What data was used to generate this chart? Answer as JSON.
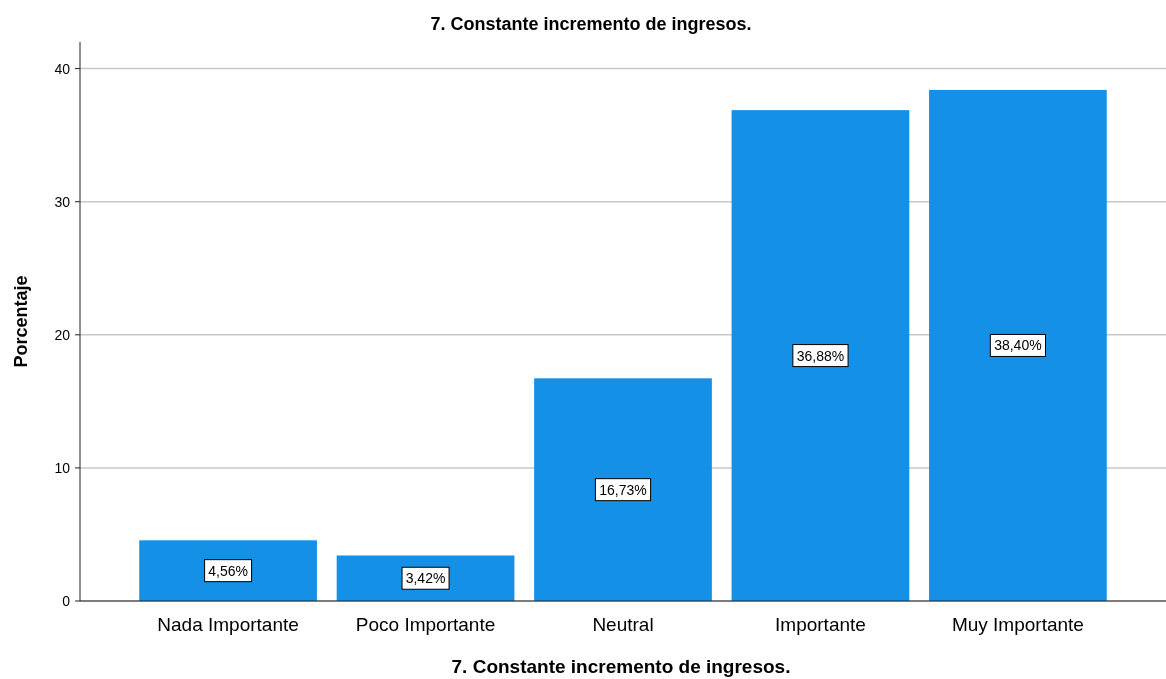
{
  "chart_data": {
    "type": "bar",
    "title": "7. Constante incremento de ingresos.",
    "xlabel": "7. Constante incremento de ingresos.",
    "ylabel": "Porcentaje",
    "categories": [
      "Nada Importante",
      "Poco Importante",
      "Neutral",
      "Importante",
      "Muy Importante"
    ],
    "values": [
      4.56,
      3.42,
      16.73,
      36.88,
      38.4
    ],
    "value_labels": [
      "4,56%",
      "3,42%",
      "16,73%",
      "36,88%",
      "38,40%"
    ],
    "color": "#1491e6",
    "ylim": [
      0,
      42
    ],
    "yticks": [
      0,
      10,
      20,
      30,
      40
    ],
    "grid": "y"
  }
}
